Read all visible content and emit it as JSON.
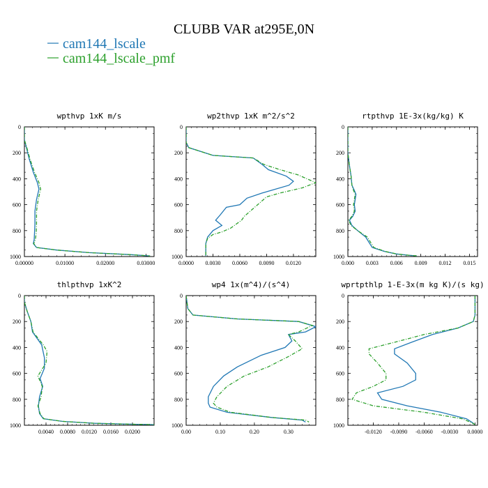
{
  "figure": {
    "title": "CLUBB VAR at295E,0N",
    "legend": [
      {
        "label": "cam144_lscale",
        "color": "#1f77b4",
        "dash": "solid"
      },
      {
        "label": "cam144_lscale_pmf",
        "color": "#2ca02c",
        "dash": "dashdot"
      }
    ]
  },
  "chart_data": [
    {
      "type": "line",
      "title": "wpthvp  1xK m/s",
      "xlim": [
        0,
        0.032
      ],
      "ylim": [
        1000,
        0
      ],
      "xticks": [
        "0.00000",
        "0.01000",
        "0.02000",
        "0.03000"
      ],
      "xtick_values": [
        0,
        0.01,
        0.02,
        0.03
      ],
      "yticks": [
        "0",
        "200",
        "400",
        "600",
        "800",
        "1000"
      ],
      "ytick_values": [
        0,
        200,
        400,
        600,
        800,
        1000
      ],
      "series": [
        {
          "name": "cam144_lscale",
          "color": "#1f77b4",
          "x": [
            0,
            0,
            0.0005,
            0.0012,
            0.0022,
            0.0032,
            0.0036,
            0.003,
            0.0026,
            0.0026,
            0.0025,
            0.0024,
            0.0022,
            0.003,
            0.008,
            0.016,
            0.026,
            0.031
          ],
          "y": [
            0,
            100,
            160,
            250,
            350,
            430,
            480,
            560,
            650,
            750,
            820,
            870,
            900,
            930,
            950,
            970,
            985,
            995
          ]
        },
        {
          "name": "cam144_lscale_pmf",
          "color": "#2ca02c",
          "x": [
            0,
            0,
            0.0006,
            0.0014,
            0.0025,
            0.0036,
            0.004,
            0.0034,
            0.003,
            0.003,
            0.0029,
            0.0027,
            0.0023,
            0.003,
            0.008,
            0.016,
            0.026,
            0.031
          ],
          "y": [
            0,
            100,
            160,
            250,
            350,
            430,
            480,
            560,
            650,
            750,
            820,
            870,
            900,
            930,
            950,
            970,
            985,
            995
          ]
        }
      ]
    },
    {
      "type": "line",
      "title": "wp2thvp  1xK m^2/s^2",
      "xlim": [
        0,
        0.0145
      ],
      "ylim": [
        1000,
        0
      ],
      "xticks": [
        "0.0000",
        "0.0030",
        "0.0060",
        "0.0090",
        "0.0120"
      ],
      "xtick_values": [
        0,
        0.003,
        0.006,
        0.009,
        0.012
      ],
      "yticks": [
        "0",
        "200",
        "400",
        "600",
        "800",
        "1000"
      ],
      "ytick_values": [
        0,
        200,
        400,
        600,
        800,
        1000
      ],
      "series": [
        {
          "name": "cam144_lscale",
          "color": "#1f77b4",
          "x": [
            0,
            0,
            0.0003,
            0.003,
            0.0075,
            0.0085,
            0.0092,
            0.0112,
            0.012,
            0.0115,
            0.0085,
            0.0068,
            0.006,
            0.0045,
            0.0038,
            0.0033,
            0.004,
            0.003,
            0.0024,
            0.0022,
            0.0022,
            0.0022
          ],
          "y": [
            0,
            120,
            160,
            220,
            240,
            290,
            330,
            380,
            420,
            450,
            510,
            550,
            600,
            620,
            680,
            720,
            760,
            800,
            850,
            900,
            950,
            995
          ]
        },
        {
          "name": "cam144_lscale_pmf",
          "color": "#2ca02c",
          "x": [
            0,
            0,
            0.0003,
            0.003,
            0.0075,
            0.0087,
            0.0105,
            0.0125,
            0.0145,
            0.013,
            0.0105,
            0.009,
            0.008,
            0.0065,
            0.0062,
            0.005,
            0.004,
            0.003,
            0.0024,
            0.0022,
            0.0022,
            0.0022
          ],
          "y": [
            0,
            120,
            160,
            220,
            240,
            290,
            330,
            370,
            430,
            470,
            510,
            540,
            600,
            690,
            720,
            780,
            810,
            830,
            860,
            900,
            950,
            995
          ]
        }
      ]
    },
    {
      "type": "line",
      "title": "rtpthvp  1E-3x(kg/kg) K",
      "xlim": [
        0,
        0.016
      ],
      "ylim": [
        1000,
        0
      ],
      "xticks": [
        "0.000",
        "0.003",
        "0.006",
        "0.009",
        "0.012",
        "0.015"
      ],
      "xtick_values": [
        0,
        0.003,
        0.006,
        0.009,
        0.012,
        0.015
      ],
      "yticks": [
        "0",
        "200",
        "400",
        "600",
        "800",
        "1000"
      ],
      "ytick_values": [
        0,
        200,
        400,
        600,
        800,
        1000
      ],
      "series": [
        {
          "name": "cam144_lscale",
          "color": "#1f77b4",
          "x": [
            0,
            0,
            0.0002,
            0.0004,
            0.0005,
            0.0008,
            0.001,
            0.0009,
            0.0008,
            0.0009,
            0.0006,
            0.0002,
            0.0005,
            0.0012,
            0.0022,
            0.003,
            0.0045,
            0.006,
            0.0075,
            0.0085
          ],
          "y": [
            0,
            200,
            300,
            380,
            450,
            490,
            520,
            560,
            600,
            650,
            690,
            720,
            760,
            800,
            850,
            930,
            960,
            980,
            990,
            995
          ]
        },
        {
          "name": "cam144_lscale_pmf",
          "color": "#2ca02c",
          "x": [
            0,
            0,
            0.0002,
            0.0004,
            0.0005,
            0.0007,
            0.0009,
            0.0008,
            0.0007,
            0.0008,
            0.0005,
            0.0001,
            0.0004,
            0.0012,
            0.0024,
            0.0032,
            0.0046,
            0.006,
            0.0075,
            0.0085
          ],
          "y": [
            0,
            200,
            300,
            380,
            450,
            490,
            520,
            560,
            600,
            650,
            690,
            720,
            760,
            800,
            850,
            930,
            960,
            980,
            990,
            995
          ]
        }
      ]
    },
    {
      "type": "line",
      "title": "thlpthvp  1xK^2",
      "xlim": [
        0,
        0.024
      ],
      "ylim": [
        1000,
        0
      ],
      "xticks": [
        "0.0040",
        "0.0080",
        "0.0120",
        "0.0160",
        "0.0200"
      ],
      "xtick_values": [
        0.004,
        0.008,
        0.012,
        0.016,
        0.02
      ],
      "yticks": [
        "0",
        "200",
        "400",
        "600",
        "800",
        "1000"
      ],
      "ytick_values": [
        0,
        200,
        400,
        600,
        800,
        1000
      ],
      "series": [
        {
          "name": "cam144_lscale",
          "color": "#1f77b4",
          "x": [
            0,
            0,
            0.0005,
            0.0012,
            0.0015,
            0.0032,
            0.0037,
            0.0037,
            0.0029,
            0.0034,
            0.0028,
            0.0026,
            0.0028,
            0.0035,
            0.007,
            0.013,
            0.02,
            0.024
          ],
          "y": [
            0,
            50,
            120,
            200,
            280,
            380,
            480,
            560,
            640,
            700,
            780,
            850,
            910,
            950,
            970,
            985,
            992,
            995
          ]
        },
        {
          "name": "cam144_lscale_pmf",
          "color": "#2ca02c",
          "x": [
            0,
            0,
            0.0005,
            0.0012,
            0.0016,
            0.0035,
            0.0042,
            0.004,
            0.0025,
            0.0033,
            0.0031,
            0.0025,
            0.0029,
            0.0036,
            0.007,
            0.013,
            0.02,
            0.024
          ],
          "y": [
            0,
            50,
            120,
            200,
            280,
            380,
            430,
            520,
            620,
            700,
            780,
            850,
            910,
            950,
            970,
            985,
            992,
            995
          ]
        }
      ]
    },
    {
      "type": "line",
      "title": "wp4  1x(m^4)/(s^4)",
      "xlim": [
        0,
        0.38
      ],
      "ylim": [
        1000,
        0
      ],
      "xticks": [
        "0.00",
        "0.10",
        "0.20",
        "0.30"
      ],
      "xtick_values": [
        0,
        0.1,
        0.2,
        0.3
      ],
      "yticks": [
        "0",
        "200",
        "400",
        "600",
        "800",
        "1000"
      ],
      "ytick_values": [
        0,
        200,
        400,
        600,
        800,
        1000
      ],
      "series": [
        {
          "name": "cam144_lscale",
          "color": "#1f77b4",
          "x": [
            0,
            0.005,
            0.02,
            0.15,
            0.33,
            0.38,
            0.35,
            0.3,
            0.31,
            0.29,
            0.22,
            0.15,
            0.11,
            0.08,
            0.065,
            0.065,
            0.07,
            0.12,
            0.25,
            0.34,
            0.35
          ],
          "y": [
            0,
            100,
            150,
            180,
            200,
            240,
            280,
            300,
            350,
            400,
            460,
            550,
            620,
            700,
            780,
            830,
            860,
            900,
            940,
            960,
            975
          ]
        },
        {
          "name": "cam144_lscale_pmf",
          "color": "#2ca02c",
          "x": [
            0,
            0.005,
            0.02,
            0.15,
            0.33,
            0.37,
            0.33,
            0.3,
            0.32,
            0.34,
            0.3,
            0.24,
            0.17,
            0.12,
            0.09,
            0.08,
            0.09,
            0.13,
            0.25,
            0.35,
            0.36
          ],
          "y": [
            0,
            100,
            150,
            180,
            200,
            230,
            280,
            300,
            350,
            410,
            470,
            550,
            620,
            700,
            780,
            830,
            860,
            900,
            940,
            960,
            975
          ]
        }
      ]
    },
    {
      "type": "line",
      "title": "wprtpthlp  1-E-3x(m kg K)/(s kg)",
      "xlim": [
        -0.015,
        0.0003
      ],
      "ylim": [
        1000,
        0
      ],
      "xticks": [
        "-0.0120",
        "-0.0090",
        "-0.0060",
        "-0.0030",
        "0.0000"
      ],
      "xtick_values": [
        -0.012,
        -0.009,
        -0.006,
        -0.003,
        0
      ],
      "yticks": [
        "0",
        "200",
        "400",
        "600",
        "800",
        "1000"
      ],
      "ytick_values": [
        0,
        200,
        400,
        600,
        800,
        1000
      ],
      "series": [
        {
          "name": "cam144_lscale",
          "color": "#1f77b4",
          "x": [
            0,
            0,
            -0.0002,
            -0.002,
            -0.005,
            -0.0075,
            -0.0095,
            -0.0095,
            -0.008,
            -0.007,
            -0.007,
            -0.0085,
            -0.0115,
            -0.011,
            -0.008,
            -0.004,
            -0.001,
            -0.0003,
            0
          ],
          "y": [
            0,
            150,
            200,
            250,
            300,
            360,
            410,
            450,
            520,
            600,
            650,
            700,
            750,
            800,
            850,
            900,
            950,
            980,
            995
          ]
        },
        {
          "name": "cam144_lscale_pmf",
          "color": "#2ca02c",
          "x": [
            0,
            0,
            -0.0002,
            -0.002,
            -0.006,
            -0.0095,
            -0.0125,
            -0.0125,
            -0.0115,
            -0.0105,
            -0.0105,
            -0.012,
            -0.014,
            -0.0145,
            -0.012,
            -0.006,
            -0.0015,
            -0.0004,
            0
          ],
          "y": [
            0,
            150,
            200,
            250,
            300,
            360,
            410,
            450,
            520,
            600,
            650,
            700,
            750,
            800,
            850,
            900,
            950,
            980,
            995
          ]
        }
      ]
    }
  ]
}
